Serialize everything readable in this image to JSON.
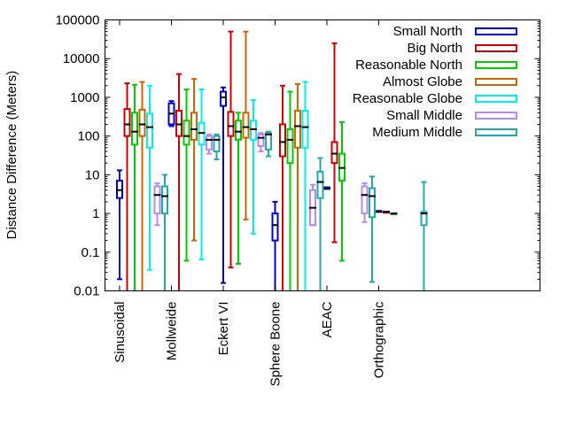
{
  "chart_data": {
    "type": "boxplot",
    "title": "",
    "xlabel": "",
    "ylabel": "Distance Difference (Meters)",
    "yscale": "log",
    "ylim": [
      0.01,
      100000
    ],
    "yticks": [
      {
        "value": 0.01,
        "label": "0.01"
      },
      {
        "value": 0.1,
        "label": "0.1"
      },
      {
        "value": 1,
        "label": "1"
      },
      {
        "value": 10,
        "label": "10"
      },
      {
        "value": 100,
        "label": "100"
      },
      {
        "value": 1000,
        "label": "1000"
      },
      {
        "value": 10000,
        "label": "10000"
      },
      {
        "value": 100000,
        "label": "100000"
      }
    ],
    "categories": [
      "Sinusoidal",
      "Mollweide",
      "Eckert VI",
      "Sphere Boone",
      "AEAC",
      "Orthographic"
    ],
    "legend_position": "top-right",
    "series": [
      {
        "name": "Small North",
        "color": "#0000cc",
        "data": [
          {
            "cat": 0,
            "low": 0.02,
            "q1": 2.5,
            "median": 4,
            "q3": 7,
            "high": 13
          },
          {
            "cat": 1,
            "low": 180,
            "q1": 200,
            "median": 380,
            "q3": 700,
            "high": 800
          },
          {
            "cat": 2,
            "low": 0.016,
            "q1": 600,
            "median": 1000,
            "q3": 1400,
            "high": 1800
          },
          {
            "cat": 3,
            "low": 0.01,
            "q1": 0.2,
            "median": 0.5,
            "q3": 1.0,
            "high": 2.0
          },
          {
            "cat": 4,
            "low": 4.3,
            "q1": 4.3,
            "median": 4.5,
            "q3": 4.7,
            "high": 4.7
          },
          {
            "cat": 5,
            "low": 1.15,
            "q1": 1.15,
            "median": 1.15,
            "q3": 1.15,
            "high": 1.15
          }
        ]
      },
      {
        "name": "Big North",
        "color": "#cc0000",
        "data": [
          {
            "cat": 0,
            "low": 0.01,
            "q1": 100,
            "median": 200,
            "q3": 500,
            "high": 2300
          },
          {
            "cat": 1,
            "low": 0.01,
            "q1": 100,
            "median": 200,
            "q3": 450,
            "high": 4000
          },
          {
            "cat": 2,
            "low": 0.04,
            "q1": 100,
            "median": 180,
            "q3": 420,
            "high": 50000
          },
          {
            "cat": 3,
            "low": 0.01,
            "q1": 30,
            "median": 70,
            "q3": 200,
            "high": 2000
          },
          {
            "cat": 4,
            "low": 0.18,
            "q1": 20,
            "median": 35,
            "q3": 70,
            "high": 25000
          },
          {
            "cat": 5,
            "low": 1.1,
            "q1": 1.1,
            "median": 1.1,
            "q3": 1.1,
            "high": 1.1
          }
        ]
      },
      {
        "name": "Reasonable North",
        "color": "#00cc00",
        "data": [
          {
            "cat": 0,
            "low": 0.01,
            "q1": 60,
            "median": 130,
            "q3": 400,
            "high": 2100
          },
          {
            "cat": 1,
            "low": 0.06,
            "q1": 60,
            "median": 100,
            "q3": 250,
            "high": 1600
          },
          {
            "cat": 2,
            "low": 0.05,
            "q1": 80,
            "median": 130,
            "q3": 250,
            "high": 400
          },
          {
            "cat": 3,
            "low": 0.01,
            "q1": 20,
            "median": 80,
            "q3": 150,
            "high": 1400
          },
          {
            "cat": 4,
            "low": 0.06,
            "q1": 7,
            "median": 15,
            "q3": 35,
            "high": 230
          },
          {
            "cat": 5,
            "low": 1.0,
            "q1": 1.0,
            "median": 1.0,
            "q3": 1.0,
            "high": 1.0
          }
        ]
      },
      {
        "name": "Almost Globe",
        "color": "#cc6600",
        "data": [
          {
            "cat": 0,
            "low": 0.01,
            "q1": 100,
            "median": 200,
            "q3": 480,
            "high": 2500
          },
          {
            "cat": 1,
            "low": 0.2,
            "q1": 80,
            "median": 150,
            "q3": 400,
            "high": 3000
          },
          {
            "cat": 2,
            "low": 0.7,
            "q1": 90,
            "median": 170,
            "q3": 400,
            "high": 50000
          },
          {
            "cat": 3,
            "low": 0.01,
            "q1": 50,
            "median": 180,
            "q3": 450,
            "high": 2200
          }
        ]
      },
      {
        "name": "Reasonable Globe",
        "color": "#00eeee",
        "data": [
          {
            "cat": 0,
            "low": 0.035,
            "q1": 50,
            "median": 170,
            "q3": 380,
            "high": 2000
          },
          {
            "cat": 1,
            "low": 0.065,
            "q1": 60,
            "median": 120,
            "q3": 220,
            "high": 1600
          },
          {
            "cat": 2,
            "low": 0.3,
            "q1": 80,
            "median": 150,
            "q3": 250,
            "high": 850
          },
          {
            "cat": 3,
            "low": 0.01,
            "q1": 50,
            "median": 170,
            "q3": 450,
            "high": 2500
          }
        ]
      },
      {
        "name": "Small Middle",
        "color": "#bb88ee",
        "data": [
          {
            "cat": 0,
            "low": 0.5,
            "q1": 1.0,
            "median": 3,
            "q3": 5,
            "high": 6
          },
          {
            "cat": 1,
            "low": 35,
            "q1": 45,
            "median": 80,
            "q3": 100,
            "high": 110
          },
          {
            "cat": 2,
            "low": 40,
            "q1": 55,
            "median": 90,
            "q3": 110,
            "high": 120
          },
          {
            "cat": 3,
            "low": 0.5,
            "q1": 0.5,
            "median": 1.4,
            "q3": 4,
            "high": 5.5
          },
          {
            "cat": 4,
            "low": 0.6,
            "q1": 1.0,
            "median": 3,
            "q3": 5,
            "high": 6
          }
        ]
      },
      {
        "name": "Medium Middle",
        "color": "#22aaaa",
        "data": [
          {
            "cat": 0,
            "low": 0.01,
            "q1": 1.0,
            "median": 2.8,
            "q3": 5,
            "high": 10
          },
          {
            "cat": 1,
            "low": 25,
            "q1": 40,
            "median": 80,
            "q3": 100,
            "high": 110
          },
          {
            "cat": 2,
            "low": 30,
            "q1": 45,
            "median": 110,
            "q3": 120,
            "high": 130
          },
          {
            "cat": 3,
            "low": 0.01,
            "q1": 2.5,
            "median": 6.5,
            "q3": 12,
            "high": 27
          },
          {
            "cat": 4,
            "low": 0.017,
            "q1": 0.8,
            "median": 2.8,
            "q3": 4.5,
            "high": 9
          },
          {
            "cat": 5,
            "low": 0.01,
            "q1": 0.5,
            "median": 1.0,
            "q3": 1.1,
            "high": 6.5
          }
        ]
      }
    ]
  }
}
